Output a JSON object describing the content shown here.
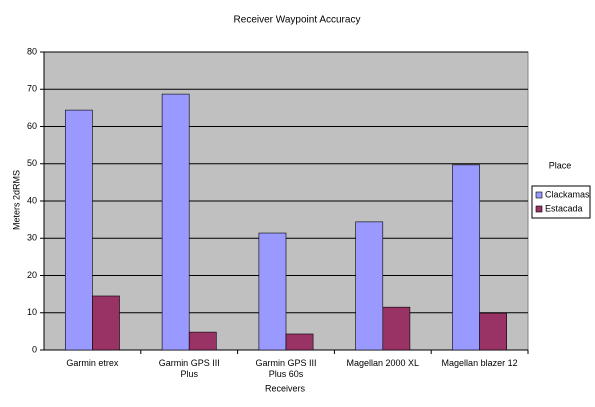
{
  "chart_data": {
    "type": "bar",
    "title": "Receiver Waypoint Accuracy",
    "x_label": "Receivers",
    "y_label": "Meters 2dRMS",
    "legend_title": "Place",
    "legend_position": "right",
    "categories": [
      "Garmin etrex",
      "Garmin GPS III Plus",
      "Garmin GPS III Plus 60s",
      "Magellan 2000 XL",
      "Magellan blazer 12"
    ],
    "series": [
      {
        "name": "Clackamas",
        "color": "#9999ff",
        "values": [
          64.4,
          68.7,
          31.4,
          34.4,
          49.7
        ]
      },
      {
        "name": "Estacada",
        "color": "#993366",
        "values": [
          14.5,
          4.8,
          4.3,
          11.5,
          9.9
        ]
      }
    ],
    "ylim": [
      0,
      80
    ],
    "yticks": [
      0,
      10,
      20,
      30,
      40,
      50,
      60,
      70,
      80
    ],
    "grid": true,
    "plot_background": "#c0c0c0"
  }
}
